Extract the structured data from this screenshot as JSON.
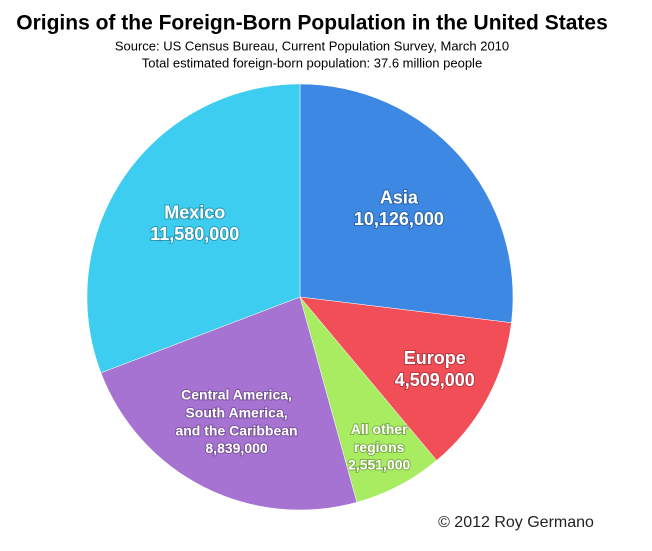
{
  "chart_data": {
    "type": "pie",
    "title": "Origins of the Foreign-Born Population in the United States",
    "source": "Source: US Census Bureau, Current Population Survey, March 2010",
    "subtitle": "Total estimated foreign-born population: 37.6 million people",
    "categories": [
      "Asia",
      "Europe",
      "All other\nregions",
      "Central America,\nSouth America,\nand the Caribbean",
      "Mexico"
    ],
    "values": [
      10126000,
      4509000,
      2551000,
      8839000,
      11580000
    ],
    "value_labels": [
      "10,126,000",
      "4,509,000",
      "2,551,000",
      "8,839,000",
      "11,580,000"
    ],
    "colors": [
      "#3d88e3",
      "#f24e58",
      "#a8ec62",
      "#a673d3",
      "#3dcdf0"
    ],
    "credit": "© 2012 Roy Germano"
  }
}
